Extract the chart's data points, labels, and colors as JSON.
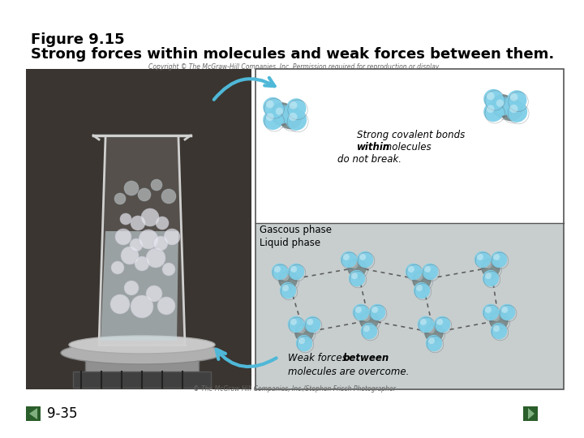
{
  "title_line1": "Figure 9.15",
  "title_line2": "Strong forces within molecules and weak forces between them.",
  "page_number": "9-35",
  "background_color": "#ffffff",
  "title_fontsize": 13,
  "title_font_weight": "bold",
  "page_num_fontsize": 12,
  "nav_arrow_color": "#2d6e2d",
  "copyright_text": "Copyright © The McGraw-Hill Companies, Inc. Permission required for reproduction or display.",
  "photo_credit": "© The McGraw-Hill Companies, Inc./Stephen Frisch Photographer",
  "gaseous_label": "Gascous phase",
  "liquid_label": "Liquid phase",
  "strong_bond_text1": "Strong covalent bonds",
  "strong_bond_text2": "within",
  "strong_bond_text3": " molecules",
  "strong_bond_text4": "do not break.",
  "weak_force_text1": "Weak forces ",
  "weak_force_text2": "between",
  "weak_force_text3": "molecules are overcome.",
  "molecule_color_light": "#7ecfe8",
  "molecule_color_dark": "#7a8a8a",
  "arrow_color": "#4fb8d8",
  "diagram_border_color": "#555555",
  "liquid_bg_color": "#c8cece",
  "gaseous_bg_color": "#ffffff"
}
